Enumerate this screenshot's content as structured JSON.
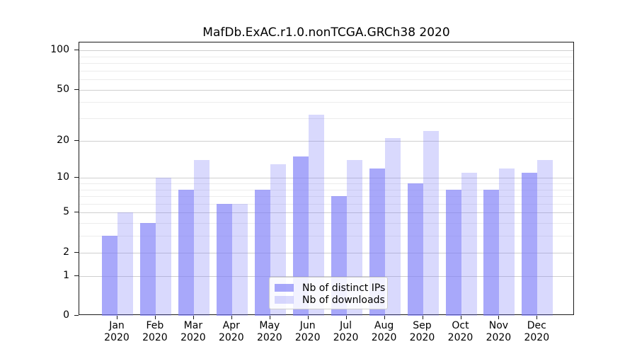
{
  "chart_data": {
    "type": "bar",
    "title": "MafDb.ExAC.r1.0.nonTCGA.GRCh38 2020",
    "categories": [
      "Jan",
      "Feb",
      "Mar",
      "Apr",
      "May",
      "Jun",
      "Jul",
      "Aug",
      "Sep",
      "Oct",
      "Nov",
      "Dec"
    ],
    "x_tick_year": "2020",
    "series": [
      {
        "name": "Nb of distinct IPs",
        "color": "rgba(123,123,247,0.66)",
        "values": [
          3,
          4,
          8,
          6,
          8,
          15,
          7,
          12,
          9,
          8,
          8,
          11
        ]
      },
      {
        "name": "Nb of downloads",
        "color": "rgba(123,123,247,0.29)",
        "values": [
          5,
          10,
          14,
          6,
          13,
          32,
          14,
          21,
          24,
          11,
          12,
          14
        ]
      }
    ],
    "yscale": "log1p",
    "ylim": [
      0,
      100
    ],
    "yticks": [
      0,
      1,
      2,
      5,
      10,
      20,
      50,
      100
    ],
    "ytick_labels": [
      "0",
      "1",
      "2",
      "5",
      "10",
      "20",
      "50",
      "100"
    ],
    "minor_yticks": [
      3,
      4,
      6,
      7,
      8,
      9,
      30,
      40,
      60,
      70,
      80,
      90
    ],
    "grid": "on",
    "legend_position": "lower-center",
    "frame_color": "#1a1a1a",
    "major_grid_color": "#cfcfcf",
    "minor_grid_color": "#ececec"
  }
}
